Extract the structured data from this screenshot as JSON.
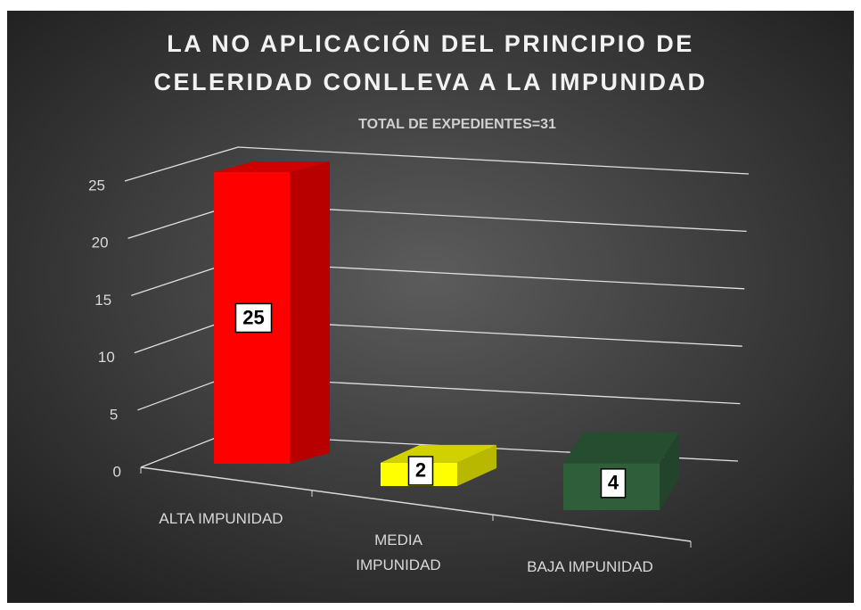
{
  "chart_data": {
    "type": "bar3d",
    "title": "LA NO APLICACIÓN DEL PRINCIPIO DE CELERIDAD CONLLEVA A LA IMPUNIDAD",
    "subtitle": "TOTAL DE EXPEDIENTES=31",
    "categories": [
      "ALTA IMPUNIDAD",
      "MEDIA IMPUNIDAD",
      "BAJA IMPUNIDAD"
    ],
    "values": [
      25,
      2,
      4
    ],
    "colors": [
      "#ff0000",
      "#ffff00",
      "#2e5e3a"
    ],
    "ylim": [
      0,
      25
    ],
    "yticks": [
      0,
      5,
      10,
      15,
      20,
      25
    ],
    "grid": true
  }
}
